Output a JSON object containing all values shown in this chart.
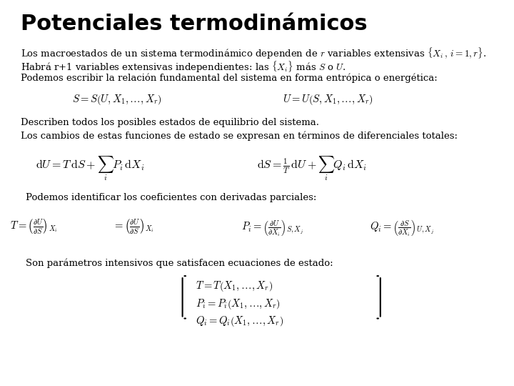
{
  "title": "Potenciales termodinámicos",
  "title_fontsize": 22,
  "background_color": "#ffffff",
  "text_color": "#000000",
  "font_family": "serif",
  "body_fontsize": 9.5,
  "line1": "Los macroestados de un sistema termodinámico dependen de $r$ variables extensivas $\\{X_i\\, , \\, i=1,r\\}$.",
  "line2": "Habrá r+1 variables extensivas independientes: las $\\{X_i\\}$ más $S$ o $U$.",
  "line3": "Podemos escribir la relación fundamental del sistema en forma entrópica o energética:",
  "eq1": "$S = S\\left(U, X_1, \\ldots, X_r\\right)$",
  "eq2": "$U = U\\left(S, X_1, \\ldots, X_r\\right)$",
  "line4": "Describen todos los posibles estados de equilibrio del sistema.",
  "line5": "Los cambios de estas funciones de estado se expresan en términos de diferenciales totales:",
  "eq3": "$\\mathrm{d}U = T\\,\\mathrm{d}S + \\sum_i P_i\\,\\mathrm{d}X_i$",
  "eq4": "$\\mathrm{d}S = \\frac{1}{T}\\,\\mathrm{d}U + \\sum_i Q_i\\,\\mathrm{d}X_i$",
  "line6": "Podemos identificar los coeficientes con derivadas parciales:",
  "eq5a": "$T = \\left(\\frac{\\partial U}{\\partial S}\\right)_{X_i}$",
  "eq5b": "$= \\left(\\frac{\\partial U}{\\partial S}\\right)_{X_i}$",
  "eq6": "$P_i = \\left(\\frac{\\partial U}{\\partial X_i}\\right)_{S,X_j}$",
  "eq7": "$Q_i = \\left(\\frac{\\partial S}{\\partial X_i}\\right)_{U,X_j}$",
  "line7": "Son parámetros intensivos que satisfacen ecuaciones de estado:",
  "eq8a": "$T = T\\left(X_1,\\ldots, X_r\\right)$",
  "eq8b": "$P_i = P_i\\left(X_1,\\ldots, X_r\\right)$",
  "eq8c": "$Q_i = Q_i\\left(X_1,\\ldots, X_r\\right)$"
}
